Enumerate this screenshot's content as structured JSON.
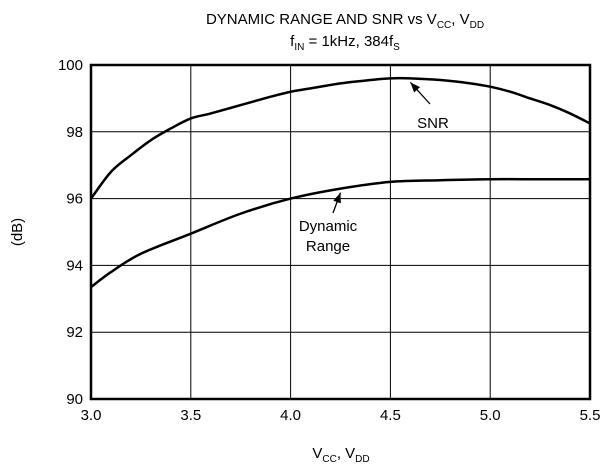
{
  "chart_data": {
    "type": "line",
    "title": {
      "main": "DYNAMIC RANGE AND SNR vs V",
      "sub1": "CC",
      "sep": ", V",
      "sub2": "DD"
    },
    "subtitle": {
      "f": "f",
      "f_sub": "IN",
      "mid": " = 1kHz, 384f",
      "end_sub": "S"
    },
    "xlabel": {
      "v1": "V",
      "s1": "CC",
      "sep": ", V",
      "s2": "DD"
    },
    "ylabel": "(dB)",
    "xlim": [
      3.0,
      5.5
    ],
    "ylim": [
      90,
      100
    ],
    "x_ticks": [
      "3.0",
      "3.5",
      "4.0",
      "4.5",
      "5.0",
      "5.5"
    ],
    "y_ticks": [
      "90",
      "92",
      "94",
      "96",
      "98",
      "100"
    ],
    "grid": true,
    "series": [
      {
        "name": "SNR",
        "x": [
          3.0,
          3.1,
          3.2,
          3.3,
          3.4,
          3.5,
          3.6,
          3.75,
          3.9,
          4.0,
          4.1,
          4.25,
          4.4,
          4.5,
          4.6,
          4.75,
          4.9,
          5.0,
          5.1,
          5.2,
          5.3,
          5.4,
          5.5
        ],
        "values": [
          96.0,
          96.8,
          97.3,
          97.75,
          98.1,
          98.4,
          98.55,
          98.8,
          99.05,
          99.2,
          99.3,
          99.45,
          99.55,
          99.6,
          99.6,
          99.55,
          99.45,
          99.35,
          99.2,
          99.0,
          98.8,
          98.55,
          98.25
        ]
      },
      {
        "name": "Dynamic Range",
        "x": [
          3.0,
          3.1,
          3.25,
          3.5,
          3.75,
          4.0,
          4.25,
          4.5,
          4.75,
          5.0,
          5.25,
          5.5
        ],
        "values": [
          93.35,
          93.8,
          94.35,
          94.95,
          95.55,
          96.0,
          96.3,
          96.5,
          96.55,
          96.58,
          96.58,
          96.58
        ]
      }
    ],
    "annotations": [
      {
        "lines": [
          "SNR"
        ],
        "at": [
          4.6,
          99.6
        ]
      },
      {
        "lines": [
          "Dynamic",
          "Range"
        ],
        "at": [
          4.25,
          96.3
        ]
      }
    ]
  }
}
